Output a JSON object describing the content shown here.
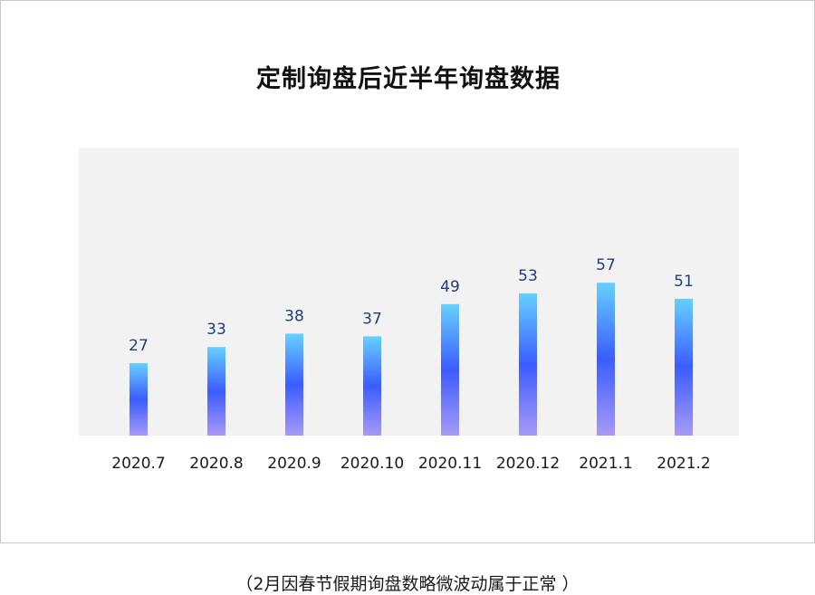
{
  "chart_data": {
    "type": "bar",
    "title": "定制询盘后近半年询盘数据",
    "categories": [
      "2020.7",
      "2020.8",
      "2020.9",
      "2020.10",
      "2020.11",
      "2020.12",
      "2021.1",
      "2021.2"
    ],
    "values": [
      27,
      33,
      38,
      37,
      49,
      53,
      57,
      51
    ],
    "xlabel": "",
    "ylabel": "",
    "ylim": [
      0,
      80
    ],
    "grid": false,
    "data_labels": true,
    "colors": {
      "bar_top": "#66d0ff",
      "bar_mid": "#3b5cff",
      "bar_bottom": "#a79af5",
      "plot_background": "#f2f2f2",
      "value_label": "#1f3f78"
    }
  },
  "footnote": "（2月因春节假期询盘数略微波动属于正常 ）"
}
